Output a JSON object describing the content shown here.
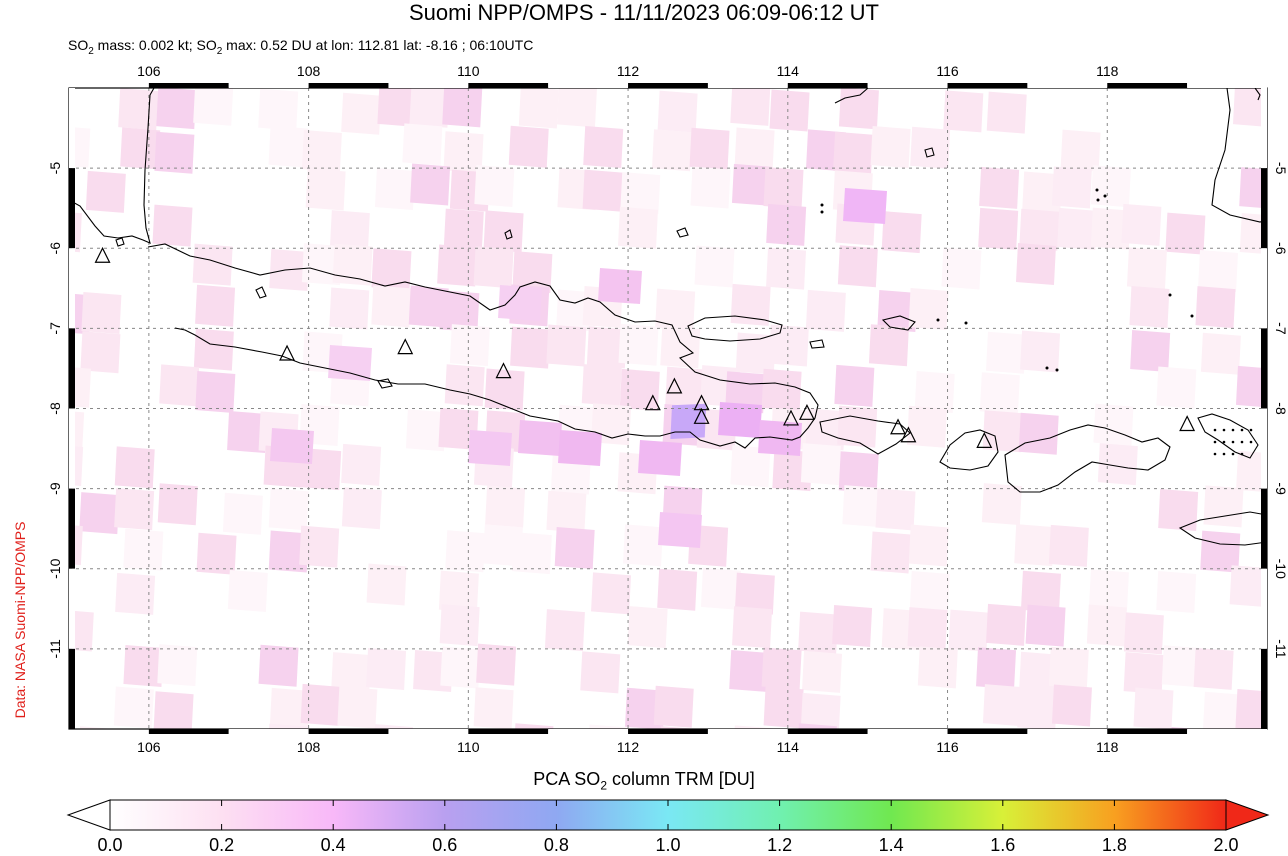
{
  "title": "Suomi NPP/OMPS - 11/11/2023 06:09-06:12 UT",
  "subtitle": {
    "pre": "SO",
    "sub1": "2",
    "mid": " mass: 0.002 kt; SO",
    "sub2": "2",
    "post": " max: 0.52 DU at lon: 112.81 lat: -8.16 ; 06:10UTC"
  },
  "credit": "Data: NASA Suomi-NPP/OMPS",
  "map": {
    "lon_range": [
      105,
      120
    ],
    "lat_range": [
      -12,
      -4
    ],
    "lon_ticks": [
      "106",
      "108",
      "110",
      "112",
      "114",
      "116",
      "118"
    ],
    "lat_ticks": [
      "-5",
      "-6",
      "-7",
      "-8",
      "-9",
      "-10",
      "-11"
    ]
  },
  "volcanoes": [
    {
      "lon": 105.42,
      "lat": -6.1
    },
    {
      "lon": 107.73,
      "lat": -7.32
    },
    {
      "lon": 109.21,
      "lat": -7.24
    },
    {
      "lon": 110.44,
      "lat": -7.54
    },
    {
      "lon": 112.31,
      "lat": -7.94
    },
    {
      "lon": 112.58,
      "lat": -7.73
    },
    {
      "lon": 112.92,
      "lat": -7.94
    },
    {
      "lon": 112.92,
      "lat": -8.11
    },
    {
      "lon": 114.04,
      "lat": -8.13
    },
    {
      "lon": 114.24,
      "lat": -8.06
    },
    {
      "lon": 115.38,
      "lat": -8.24
    },
    {
      "lon": 115.51,
      "lat": -8.34
    },
    {
      "lon": 116.46,
      "lat": -8.41
    },
    {
      "lon": 119.0,
      "lat": -8.2
    }
  ],
  "colorbar": {
    "title_pre": "PCA SO",
    "title_sub": "2",
    "title_post": " column TRM [DU]",
    "ticks": [
      "0.0",
      "0.2",
      "0.4",
      "0.6",
      "0.8",
      "1.0",
      "1.2",
      "1.4",
      "1.6",
      "1.8",
      "2.0"
    ],
    "range": [
      0.0,
      2.0
    ]
  },
  "colors": {
    "credit": "#e0201b",
    "so2_max_cell": "#c8a8f8"
  }
}
